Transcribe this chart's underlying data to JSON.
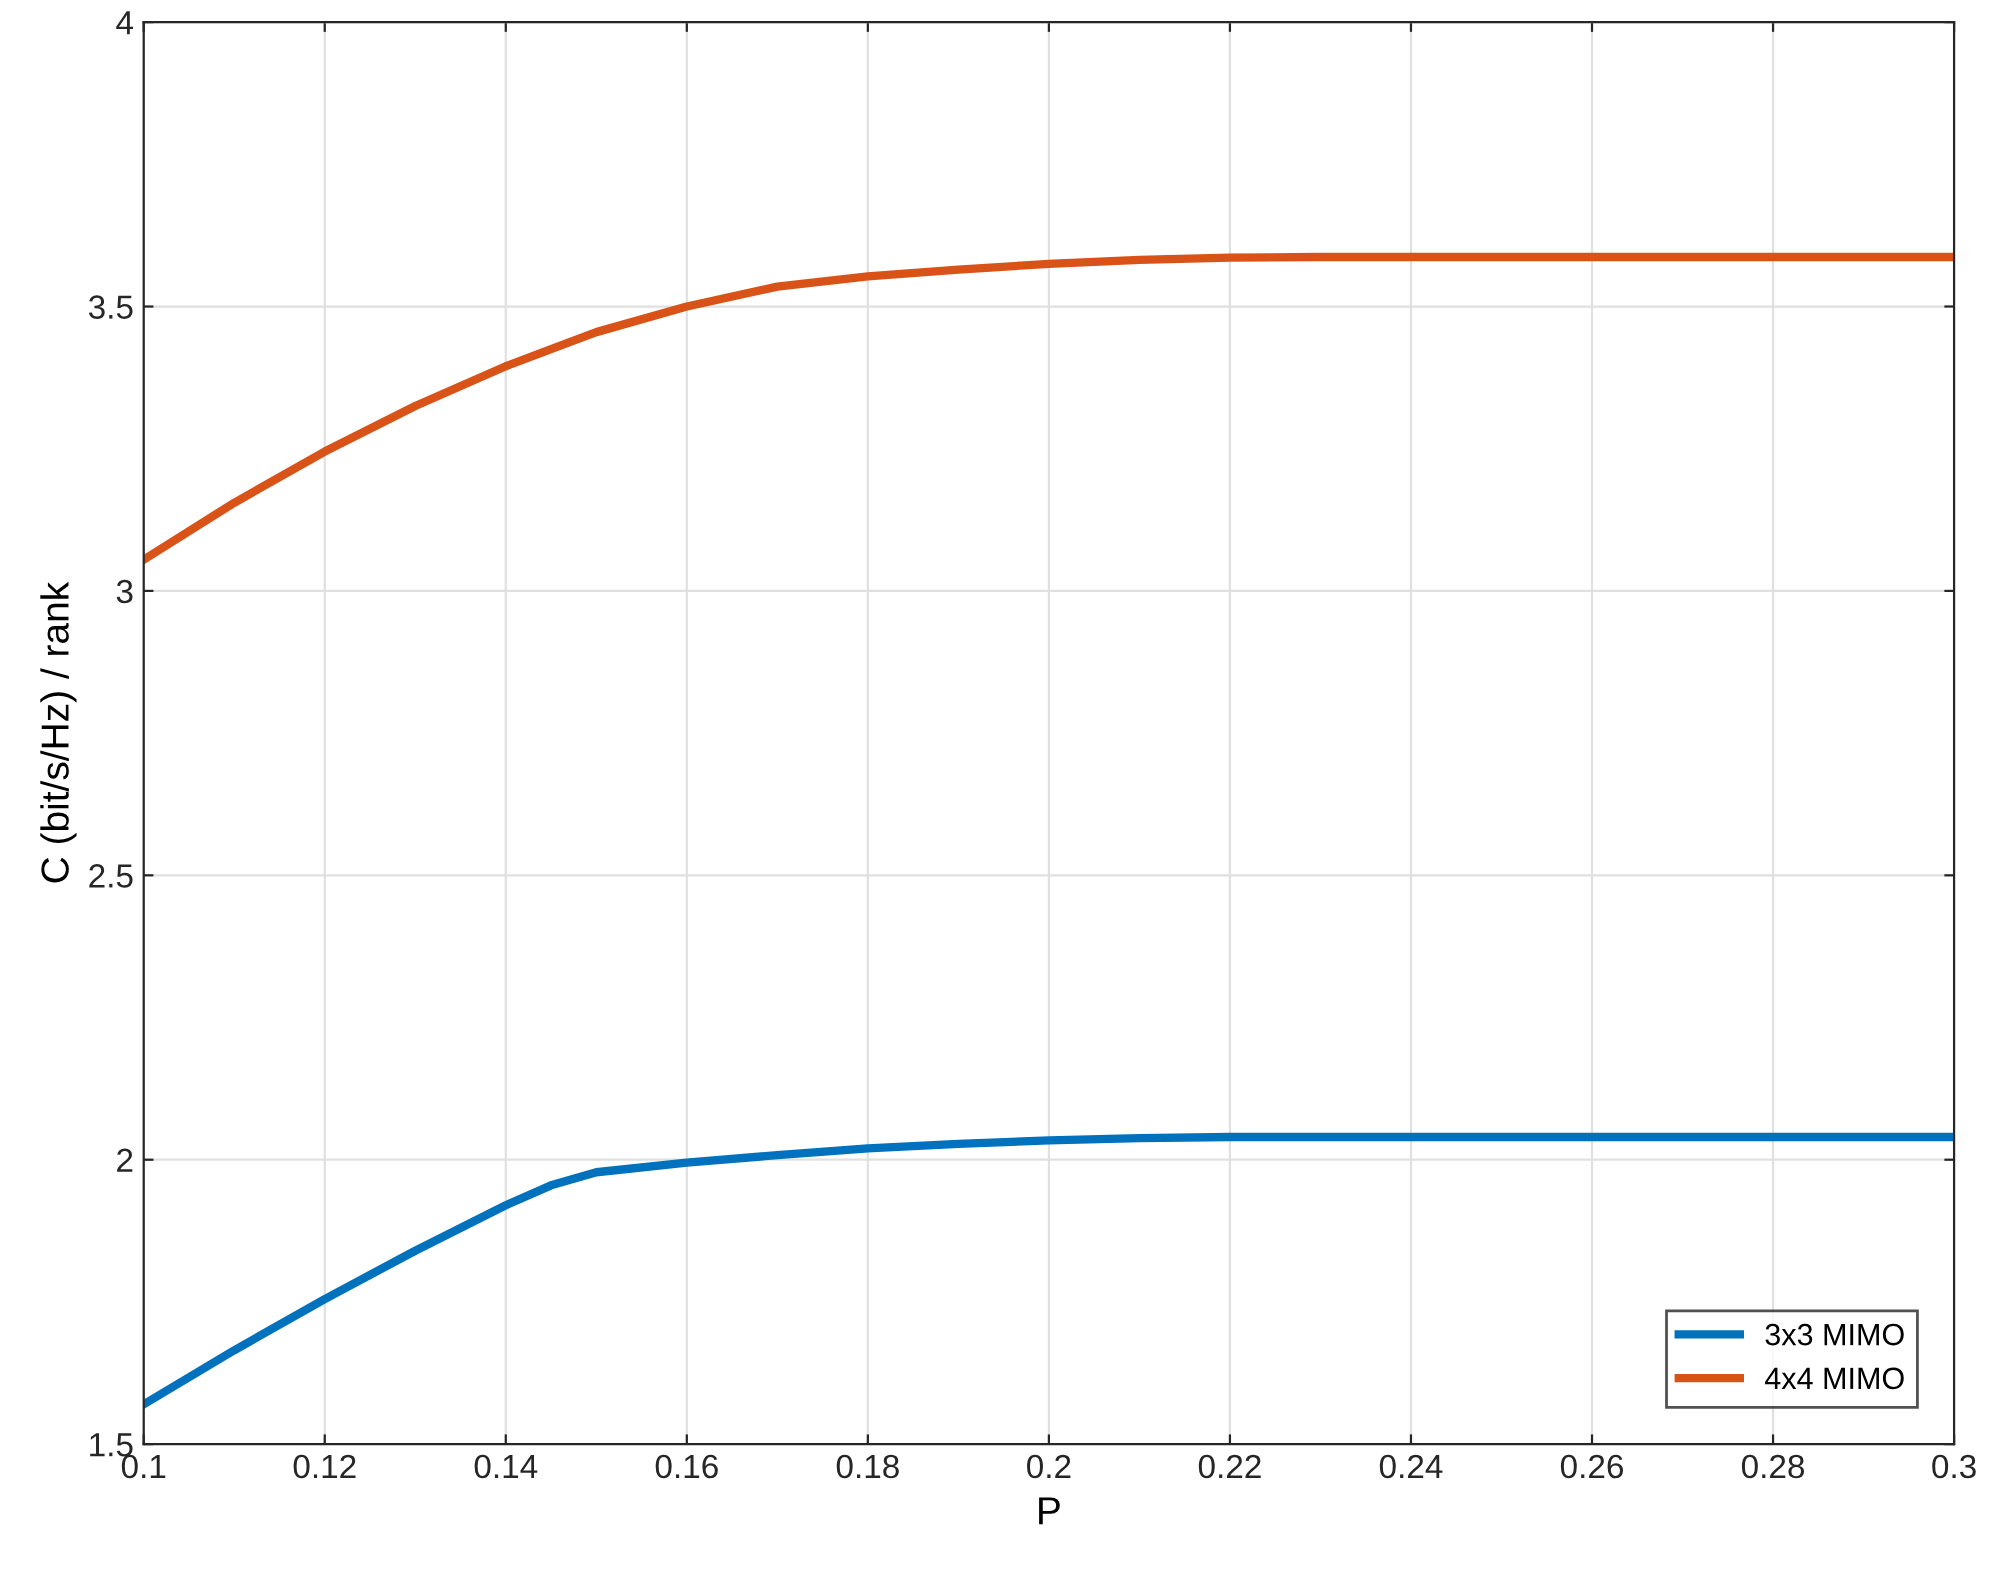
{
  "chart_data": {
    "type": "line",
    "xlabel": "P",
    "ylabel": "C (bit/s/Hz) / rank",
    "x": [
      0.1,
      0.11,
      0.12,
      0.13,
      0.14,
      0.145,
      0.15,
      0.16,
      0.17,
      0.18,
      0.19,
      0.2,
      0.21,
      0.22,
      0.23,
      0.24,
      0.26,
      0.28,
      0.3
    ],
    "series": [
      {
        "name": "3x3 MIMO",
        "color": "#0072bd",
        "values": [
          1.57,
          1.665,
          1.755,
          1.84,
          1.92,
          1.955,
          1.978,
          1.995,
          2.008,
          2.02,
          2.028,
          2.034,
          2.038,
          2.04,
          2.04,
          2.04,
          2.04,
          2.04,
          2.04
        ]
      },
      {
        "name": "4x4 MIMO",
        "color": "#d95319",
        "values": [
          3.055,
          3.155,
          3.245,
          3.325,
          3.395,
          3.425,
          3.455,
          3.5,
          3.535,
          3.553,
          3.565,
          3.575,
          3.582,
          3.586,
          3.587,
          3.587,
          3.587,
          3.587,
          3.587
        ]
      }
    ],
    "xlim": [
      0.1,
      0.3
    ],
    "ylim": [
      1.5,
      4
    ],
    "xticks": [
      0.1,
      0.12,
      0.14,
      0.16,
      0.18,
      0.2,
      0.22,
      0.24,
      0.26,
      0.28,
      0.3
    ],
    "yticks": [
      1.5,
      2,
      2.5,
      3,
      3.5,
      4
    ],
    "grid": true,
    "legend": "bottom right",
    "marker": "none",
    "line_style": "solid"
  }
}
